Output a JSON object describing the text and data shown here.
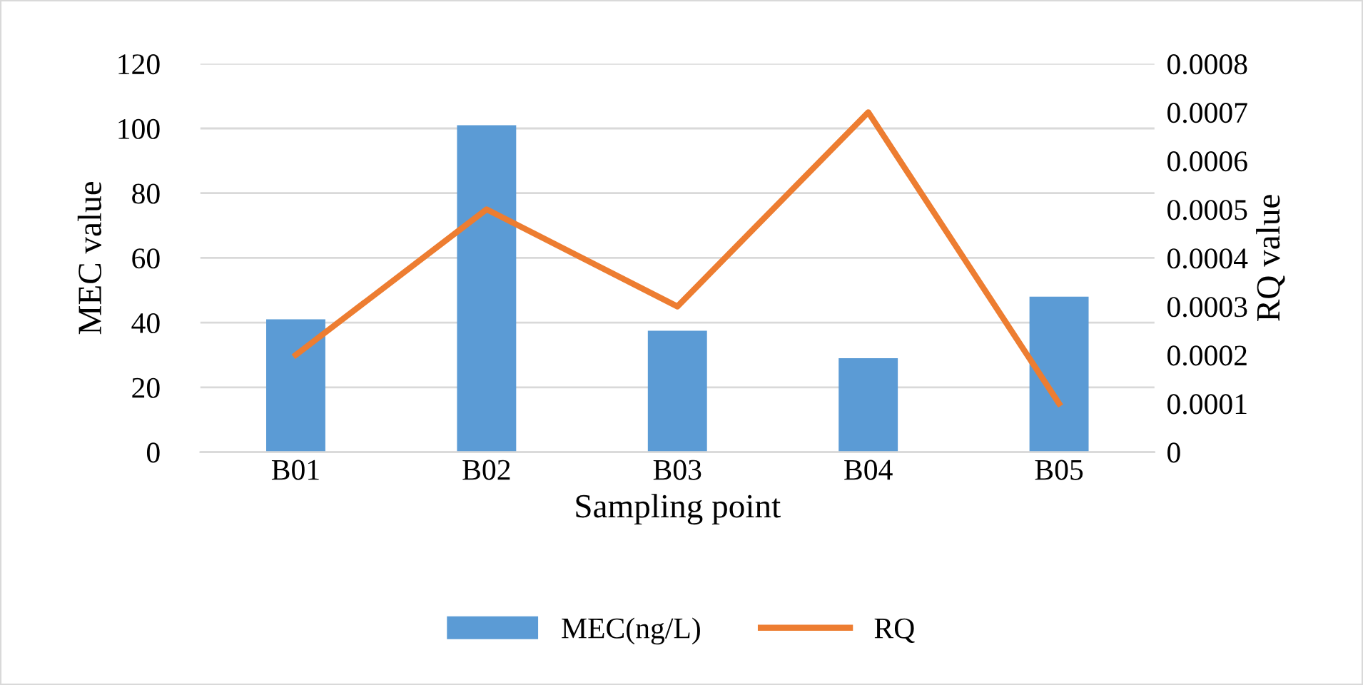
{
  "chart_data": {
    "type": "bar",
    "xlabel": "Sampling point",
    "ylabel": "MEC value",
    "y2label": "RQ value",
    "categories": [
      "B01",
      "B02",
      "B03",
      "B04",
      "B05"
    ],
    "series": [
      {
        "name": "MEC(ng/L)",
        "color": "#5b9bd5",
        "values": [
          41,
          101,
          37.5,
          29,
          48
        ]
      },
      {
        "name": "RQ",
        "type": "line",
        "axis": "y2",
        "color": "#ed7d31",
        "values": [
          0.0002,
          0.0005,
          0.0003,
          0.0007,
          0.0001
        ]
      }
    ],
    "ylim": [
      0,
      120
    ],
    "yticks": [
      0,
      20,
      40,
      60,
      80,
      100,
      120
    ],
    "y2lim": [
      0,
      0.0008
    ],
    "y2ticks": [
      0,
      0.0001,
      0.0002,
      0.0003,
      0.0004,
      0.0005,
      0.0006,
      0.0007,
      0.0008
    ],
    "grid": "y",
    "legend": "bottom",
    "marker": "none"
  }
}
